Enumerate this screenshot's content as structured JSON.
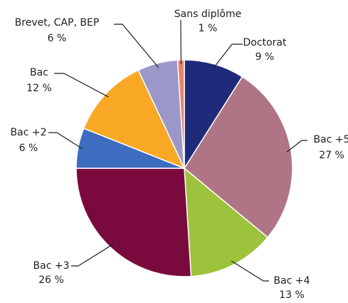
{
  "chart_data": {
    "type": "pie",
    "categories": [
      "Doctorat",
      "Bac +5",
      "Bac +4",
      "Bac +3",
      "Bac +2",
      "Bac",
      "Brevet, CAP, BEP",
      "Sans diplôme"
    ],
    "values": [
      9,
      27,
      13,
      26,
      6,
      12,
      6,
      1
    ],
    "value_labels": [
      "9 %",
      "27 %",
      "13 %",
      "26 %",
      "6 %",
      "12 %",
      "6 %",
      "1 %"
    ],
    "colors": [
      "#1f2a7a",
      "#b07585",
      "#9dc23b",
      "#7a0a3d",
      "#3d6cc0",
      "#f8a824",
      "#9b98c9",
      "#e8836e"
    ]
  }
}
